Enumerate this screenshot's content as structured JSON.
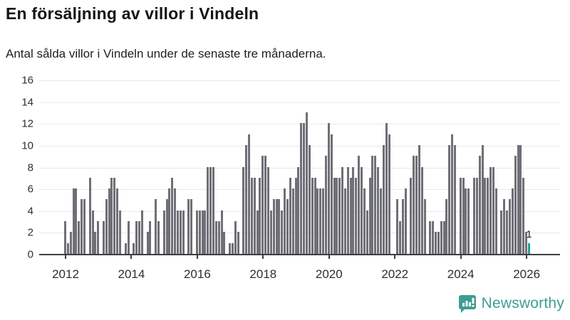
{
  "header": {
    "title": "En försäljning av villor i Vindeln",
    "subtitle": "Antal sålda villor i Vindeln under de senaste tre månaderna."
  },
  "footer": {
    "brand": "Newsworthy",
    "brand_color": "#3d9e93",
    "logo_icon": "speech-bubble-bar-chart-icon"
  },
  "chart_data": {
    "type": "bar",
    "title": "En försäljning av villor i Vindeln",
    "subtitle": "Antal sålda villor i Vindeln under de senaste tre månaderna.",
    "x_start": "2012-01",
    "x_end": "2026-02",
    "frequency": "monthly",
    "ylim": [
      0,
      16
    ],
    "yticks": [
      0,
      2,
      4,
      6,
      8,
      10,
      12,
      14,
      16
    ],
    "xticks": [
      "2012",
      "2014",
      "2016",
      "2018",
      "2020",
      "2022",
      "2024",
      "2026"
    ],
    "grid": true,
    "bar_color": "#6f6f77",
    "highlight_color": "#1fa195",
    "highlight_index": 169,
    "annotation": {
      "text": "1",
      "index": 169
    },
    "values": [
      3,
      1,
      2,
      6,
      6,
      3,
      5,
      5,
      0,
      7,
      4,
      2,
      3,
      0,
      3,
      5,
      6,
      7,
      7,
      6,
      4,
      0,
      1,
      3,
      0,
      1,
      3,
      3,
      4,
      0,
      2,
      3,
      0,
      5,
      3,
      0,
      4,
      5,
      6,
      7,
      6,
      4,
      4,
      4,
      0,
      5,
      5,
      0,
      4,
      4,
      4,
      4,
      8,
      8,
      8,
      3,
      3,
      4,
      2,
      0,
      1,
      1,
      3,
      2,
      0,
      8,
      10,
      11,
      7,
      7,
      4,
      7,
      9,
      9,
      8,
      4,
      5,
      5,
      5,
      4,
      6,
      5,
      7,
      6,
      7,
      8,
      12,
      12,
      13,
      10,
      7,
      7,
      6,
      6,
      6,
      9,
      12,
      11,
      7,
      7,
      7,
      8,
      6,
      8,
      7,
      8,
      7,
      9,
      8,
      6,
      4,
      7,
      9,
      9,
      8,
      6,
      10,
      12,
      11,
      0,
      0,
      5,
      3,
      5,
      6,
      0,
      7,
      9,
      9,
      10,
      8,
      5,
      0,
      3,
      3,
      2,
      2,
      3,
      3,
      5,
      10,
      11,
      10,
      0,
      7,
      7,
      6,
      6,
      0,
      7,
      7,
      9,
      10,
      7,
      7,
      8,
      8,
      6,
      0,
      4,
      5,
      4,
      5,
      6,
      9,
      10,
      10,
      7,
      2,
      1
    ]
  }
}
